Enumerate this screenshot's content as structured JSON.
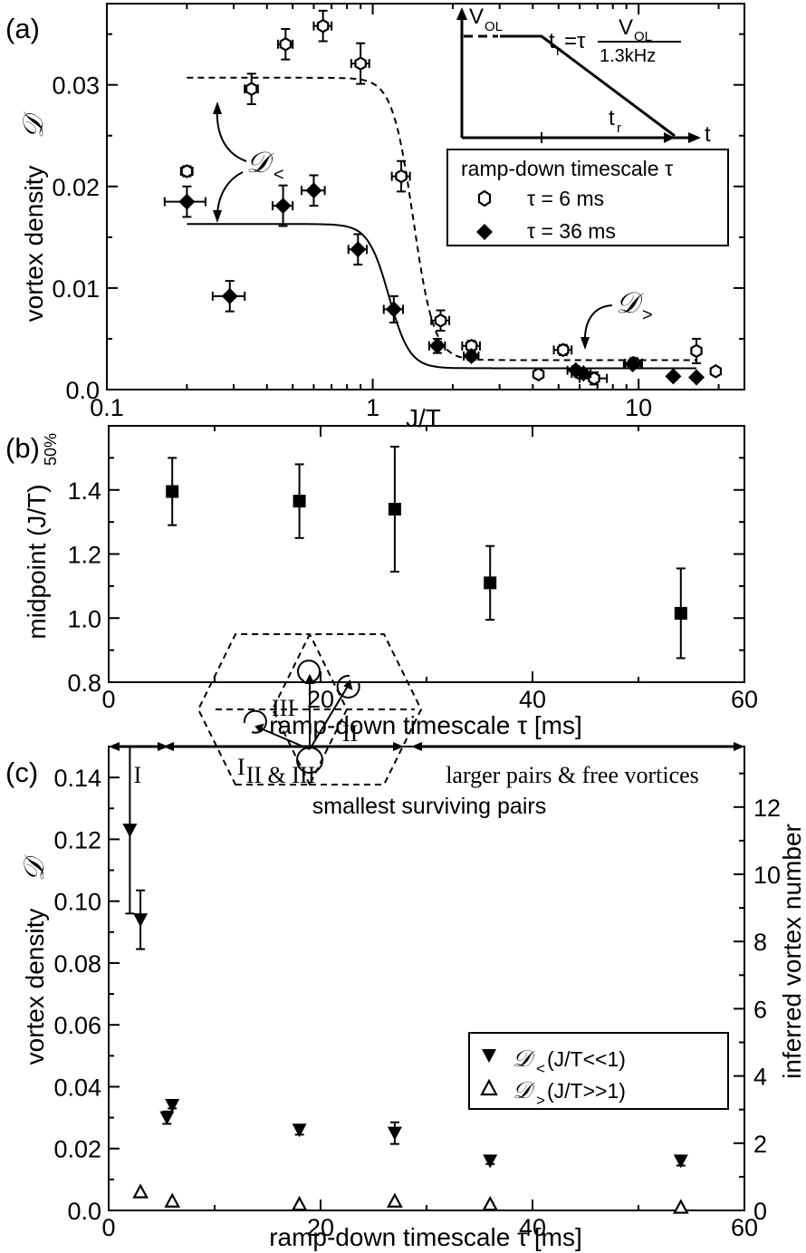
{
  "panels": {
    "a": {
      "label": "(a)",
      "ylabel": "vortex density",
      "ylabel_symbol": "𝒟",
      "xlabel": "J/T",
      "xticks": [
        {
          "v": 0.1,
          "label": "0.1"
        },
        {
          "v": 1,
          "label": "1"
        },
        {
          "v": 10,
          "label": "10"
        }
      ],
      "yticks": [
        {
          "v": 0.0,
          "label": "0.0"
        },
        {
          "v": 0.01,
          "label": "0.01"
        },
        {
          "v": 0.02,
          "label": "0.02"
        },
        {
          "v": 0.03,
          "label": "0.03"
        }
      ],
      "legend_title": "ramp-down timescale τ",
      "legend": [
        "τ = 6 ms",
        "τ = 36 ms"
      ],
      "annot_lt": "𝒟",
      "annot_lt_sub": "<",
      "annot_gt": "𝒟",
      "annot_gt_sub": ">",
      "inset": {
        "v_axis": "V",
        "v_axis_sub": "OL",
        "t_axis": "t",
        "tr_label": "t",
        "tr_sub": "r",
        "formula_lhs": "t",
        "formula_lhs_sub": "r",
        "formula_eq": "=τ",
        "formula_num": "V",
        "formula_num_sub": "OL",
        "formula_den": "1.3kHz"
      }
    },
    "b": {
      "label": "(b)",
      "ylabel": "midpoint (J/T)",
      "ylabel_sub": "50%",
      "xlabel": "ramp-down timescale τ [ms]",
      "xticks": [
        {
          "v": 0,
          "label": "0"
        },
        {
          "v": 20,
          "label": "20"
        },
        {
          "v": 40,
          "label": "40"
        },
        {
          "v": 60,
          "label": "60"
        }
      ],
      "yticks": [
        {
          "v": 0.8,
          "label": "0.8"
        },
        {
          "v": 1.0,
          "label": "1.0"
        },
        {
          "v": 1.2,
          "label": "1.2"
        },
        {
          "v": 1.4,
          "label": "1.4"
        }
      ]
    },
    "c": {
      "label": "(c)",
      "ylabel": "vortex density",
      "ylabel_symbol": "𝒟",
      "ylabel_right": "inferred vortex number",
      "xlabel": "ramp-down timescale τ [ms]",
      "xticks": [
        {
          "v": 0,
          "label": "0"
        },
        {
          "v": 20,
          "label": "20"
        },
        {
          "v": 40,
          "label": "40"
        },
        {
          "v": 60,
          "label": "60"
        }
      ],
      "yticks": [
        {
          "v": 0.0,
          "label": "0.0"
        },
        {
          "v": 0.02,
          "label": "0.02"
        },
        {
          "v": 0.04,
          "label": "0.04"
        },
        {
          "v": 0.06,
          "label": "0.06"
        },
        {
          "v": 0.08,
          "label": "0.08"
        },
        {
          "v": 0.1,
          "label": "0.10"
        },
        {
          "v": 0.12,
          "label": "0.12"
        },
        {
          "v": 0.14,
          "label": "0.14"
        }
      ],
      "yticks_right": [
        {
          "v": 0,
          "label": "0"
        },
        {
          "v": 2,
          "label": "2"
        },
        {
          "v": 4,
          "label": "4"
        },
        {
          "v": 6,
          "label": "6"
        },
        {
          "v": 8,
          "label": "8"
        },
        {
          "v": 10,
          "label": "10"
        },
        {
          "v": 12,
          "label": "12"
        }
      ],
      "region_I": "I",
      "region_II_III": "II & III",
      "region_free": "larger pairs & free vortices",
      "region_note": "smallest surviving pairs",
      "legend": [
        {
          "sym": "𝒟",
          "sub": "<",
          "text": " (J/T<<1)"
        },
        {
          "sym": "𝒟",
          "sub": ">",
          "text": " (J/T>>1)"
        }
      ],
      "lattice_labels": [
        "I",
        "II",
        "III"
      ]
    }
  },
  "chart_data": [
    {
      "type": "scatter",
      "panel": "a",
      "xscale": "log",
      "xlim": [
        0.1,
        25
      ],
      "ylim": [
        0,
        0.038
      ],
      "xlabel": "J/T",
      "ylabel": "vortex density 𝒟",
      "series": [
        {
          "name": "τ = 6 ms",
          "marker": "open-hexagon",
          "fit": "dashed",
          "points": [
            {
              "x": 0.2,
              "y": 0.0215,
              "xerr": 0.01,
              "yerr": 0.0005
            },
            {
              "x": 0.35,
              "y": 0.0296,
              "xerr": 0.02,
              "yerr": 0.0015
            },
            {
              "x": 0.47,
              "y": 0.034,
              "xerr": 0.03,
              "yerr": 0.0015
            },
            {
              "x": 0.65,
              "y": 0.0358,
              "xerr": 0.05,
              "yerr": 0.0015
            },
            {
              "x": 0.9,
              "y": 0.0321,
              "xerr": 0.07,
              "yerr": 0.002
            },
            {
              "x": 1.28,
              "y": 0.021,
              "xerr": 0.1,
              "yerr": 0.0015
            },
            {
              "x": 1.8,
              "y": 0.0068,
              "xerr": 0.14,
              "yerr": 0.001
            },
            {
              "x": 2.35,
              "y": 0.0043,
              "xerr": 0.18,
              "yerr": 0.0005
            },
            {
              "x": 4.2,
              "y": 0.0015,
              "xerr": 0,
              "yerr": 0
            },
            {
              "x": 5.2,
              "y": 0.0039,
              "xerr": 0.4,
              "yerr": 0.0005
            },
            {
              "x": 6.0,
              "y": 0.0016,
              "xerr": 0.4,
              "yerr": 0.0004
            },
            {
              "x": 6.8,
              "y": 0.0011,
              "xerr": 0.8,
              "yerr": 0.0006
            },
            {
              "x": 9.6,
              "y": 0.0026,
              "xerr": 0.7,
              "yerr": 0.0005
            },
            {
              "x": 16.5,
              "y": 0.0038,
              "xerr": 0,
              "yerr": 0.0012
            },
            {
              "x": 19.5,
              "y": 0.0018,
              "xerr": 0,
              "yerr": 0
            }
          ]
        },
        {
          "name": "τ = 36 ms",
          "marker": "filled-diamond",
          "fit": "solid",
          "points": [
            {
              "x": 0.2,
              "y": 0.0185,
              "xerr": 0.035,
              "yerr": 0.0015
            },
            {
              "x": 0.29,
              "y": 0.0092,
              "xerr": 0.04,
              "yerr": 0.0015
            },
            {
              "x": 0.46,
              "y": 0.0181,
              "xerr": 0.04,
              "yerr": 0.002
            },
            {
              "x": 0.6,
              "y": 0.0196,
              "xerr": 0.06,
              "yerr": 0.0015
            },
            {
              "x": 0.88,
              "y": 0.0138,
              "xerr": 0.07,
              "yerr": 0.0015
            },
            {
              "x": 1.2,
              "y": 0.0079,
              "xerr": 0.1,
              "yerr": 0.0013
            },
            {
              "x": 1.75,
              "y": 0.0043,
              "xerr": 0.12,
              "yerr": 0.0007
            },
            {
              "x": 2.35,
              "y": 0.0033,
              "xerr": 0.15,
              "yerr": 0.0004
            },
            {
              "x": 5.8,
              "y": 0.0019,
              "xerr": 0.4,
              "yerr": 0.0004
            },
            {
              "x": 6.2,
              "y": 0.0016,
              "xerr": 0.4,
              "yerr": 0.0003
            },
            {
              "x": 9.5,
              "y": 0.0025,
              "xerr": 0.7,
              "yerr": 0.0004
            },
            {
              "x": 13.5,
              "y": 0.0013,
              "xerr": 0,
              "yerr": 0.0003
            },
            {
              "x": 16.5,
              "y": 0.0012,
              "xerr": 0,
              "yerr": 0
            }
          ]
        }
      ]
    },
    {
      "type": "scatter",
      "panel": "b",
      "xlim": [
        0,
        60
      ],
      "ylim": [
        0.8,
        1.6
      ],
      "xlabel": "ramp-down timescale τ [ms]",
      "ylabel": "midpoint (J/T)50%",
      "series": [
        {
          "marker": "filled-square",
          "points": [
            {
              "x": 6,
              "y": 1.395,
              "yerr": 0.105
            },
            {
              "x": 18,
              "y": 1.365,
              "yerr": 0.115
            },
            {
              "x": 27,
              "y": 1.34,
              "yerr": 0.195
            },
            {
              "x": 36,
              "y": 1.11,
              "yerr": 0.115
            },
            {
              "x": 54,
              "y": 1.015,
              "yerr": 0.14
            }
          ]
        }
      ]
    },
    {
      "type": "scatter",
      "panel": "c",
      "xlim": [
        0,
        60
      ],
      "ylim": [
        0,
        0.15
      ],
      "y2lim": [
        0,
        13.8
      ],
      "xlabel": "ramp-down timescale τ [ms]",
      "ylabel": "vortex density 𝒟",
      "y2label": "inferred vortex number",
      "series": [
        {
          "name": "𝒟< (J/T<<1)",
          "marker": "filled-triangle-down",
          "points": [
            {
              "x": 2,
              "y": 0.123,
              "yerr": 0.027
            },
            {
              "x": 3,
              "y": 0.094,
              "yerr": 0.0095
            },
            {
              "x": 5.5,
              "y": 0.03,
              "yerr": 0.002
            },
            {
              "x": 6,
              "y": 0.034,
              "yerr": 0.001
            },
            {
              "x": 18,
              "y": 0.026,
              "yerr": 0.0015
            },
            {
              "x": 27,
              "y": 0.025,
              "yerr": 0.0035
            },
            {
              "x": 36,
              "y": 0.016,
              "yerr": 0.001
            },
            {
              "x": 54,
              "y": 0.016,
              "yerr": 0.0015
            }
          ]
        },
        {
          "name": "𝒟> (J/T>>1)",
          "marker": "open-triangle-up",
          "points": [
            {
              "x": 3,
              "y": 0.006
            },
            {
              "x": 6,
              "y": 0.003
            },
            {
              "x": 18,
              "y": 0.002
            },
            {
              "x": 27,
              "y": 0.003
            },
            {
              "x": 36,
              "y": 0.002
            },
            {
              "x": 54,
              "y": 0.001
            }
          ]
        }
      ]
    }
  ]
}
